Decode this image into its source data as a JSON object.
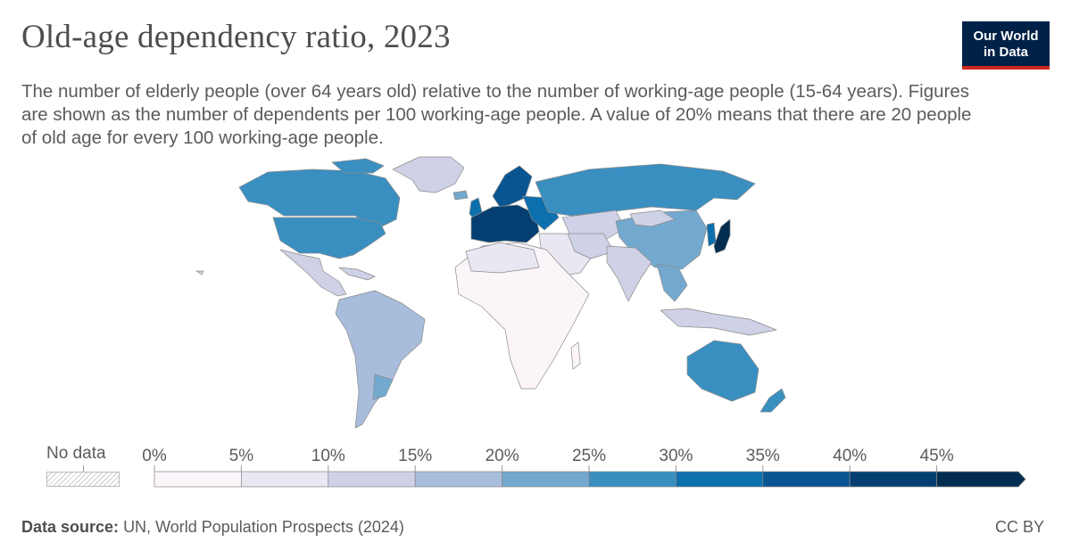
{
  "title": "Old-age dependency ratio, 2023",
  "subtitle": "The number of elderly people (over 64 years old) relative to the number of working-age people (15-64 years). Figures are shown as the number of dependents per 100 working-age people. A value of 20% means that there are 20 people of old age for every 100 working-age people.",
  "logo": {
    "line1": "Our World",
    "line2": "in Data",
    "bg": "#002147",
    "accent": "#ce261e"
  },
  "legend": {
    "no_data_label": "No data",
    "ticks": [
      "0%",
      "5%",
      "10%",
      "15%",
      "20%",
      "25%",
      "30%",
      "35%",
      "40%",
      "45%"
    ],
    "colors": [
      "#fbf5fa",
      "#e9e7f2",
      "#cfd1e6",
      "#a8bcdc",
      "#73a9cf",
      "#3a8fc1",
      "#0c6fae",
      "#095592",
      "#053f72",
      "#032d50"
    ]
  },
  "source": {
    "label": "Data source:",
    "text": "UN, World Population Prospects (2024)"
  },
  "license": "CC BY"
}
